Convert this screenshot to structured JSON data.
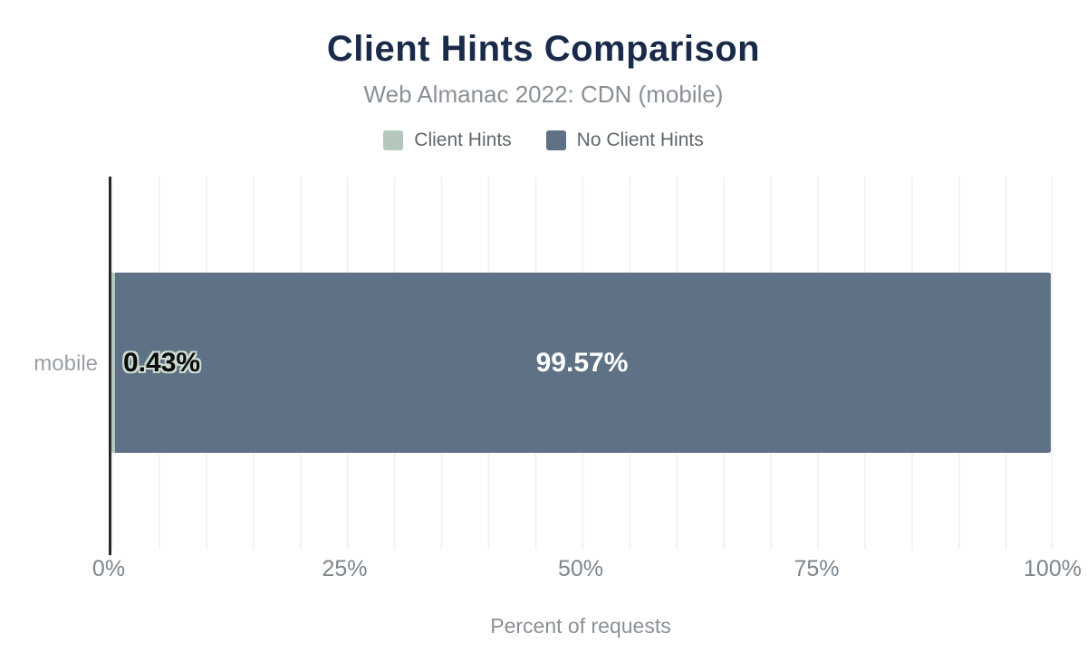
{
  "header": {
    "title": "Client Hints Comparison",
    "subtitle": "Web Almanac 2022: CDN (mobile)"
  },
  "legend": [
    {
      "label": "Client Hints",
      "color": "#b4c7bc"
    },
    {
      "label": "No Client Hints",
      "color": "#5f7285"
    }
  ],
  "chart_data": {
    "type": "bar",
    "orientation": "horizontal",
    "stacked": true,
    "title": "Client Hints Comparison",
    "subtitle": "Web Almanac 2022: CDN (mobile)",
    "categories": [
      "mobile"
    ],
    "series": [
      {
        "name": "Client Hints",
        "values": [
          0.43
        ],
        "label": "0.43%",
        "color": "#b4c7bc"
      },
      {
        "name": "No Client Hints",
        "values": [
          99.57
        ],
        "label": "99.57%",
        "color": "#5f7285"
      }
    ],
    "xlabel": "Percent of requests",
    "ylabel": "",
    "xlim": [
      0,
      100
    ],
    "x_ticks": [
      "0%",
      "25%",
      "50%",
      "75%",
      "100%"
    ],
    "grid": "vertical gridlines every 5%",
    "legend_position": "top-center"
  },
  "colors": {
    "title": "#1a2b49",
    "subtitle_text": "#8a9096",
    "legend_text": "#5f666c",
    "tick_text": "#7d858c",
    "category_text": "#9aa0a6",
    "axis_line": "#24282c",
    "gridline": "#f2f3f4",
    "value_label_dark": "#0b0b0b",
    "value_label_light": "#ffffff",
    "value_label_halo": "#ccd9cf",
    "background": "#ffffff"
  }
}
